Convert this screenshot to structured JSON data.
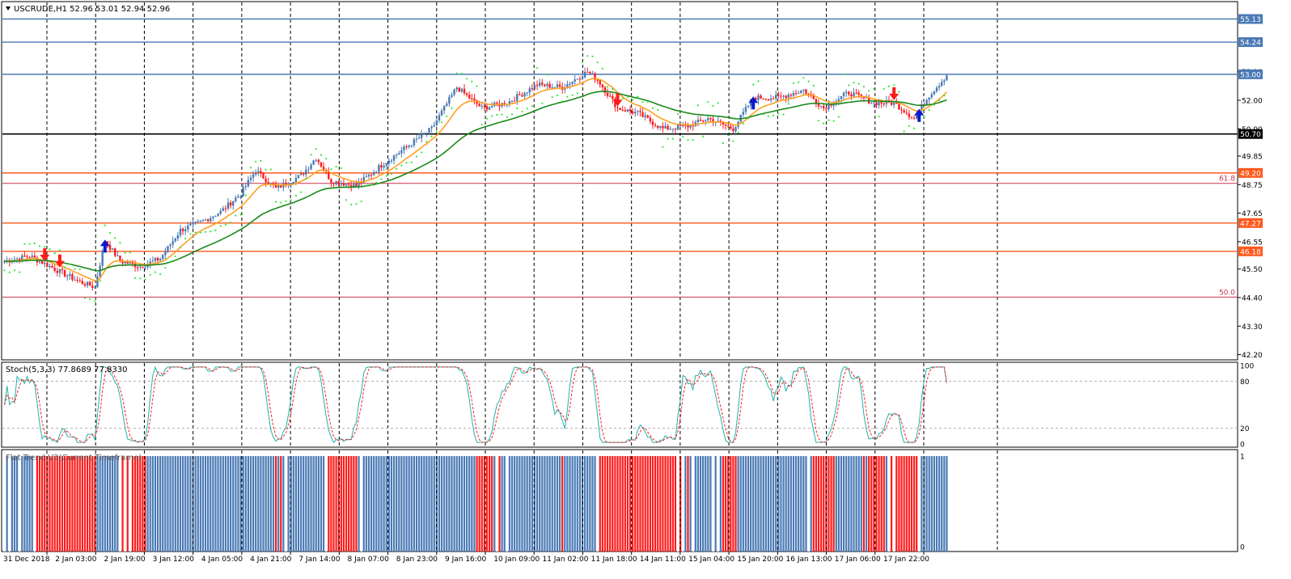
{
  "symbol_header": {
    "text": "USCRUDE,H1  52.96 53.01 52.94 52.96",
    "menu_icon": "triangle-down-icon"
  },
  "chart_data": [
    {
      "type": "candlestick",
      "panel": "price",
      "symbol": "USCRUDE",
      "timeframe": "H1",
      "ohlc_current": {
        "open": 52.96,
        "high": 53.01,
        "low": 52.94,
        "close": 52.96
      },
      "y_ticks": [
        "53.10",
        "52.00",
        "50.90",
        "49.85",
        "48.75",
        "47.65",
        "46.55",
        "45.50",
        "44.40",
        "43.30",
        "42.20"
      ],
      "y_tick_values": [
        53.1,
        52.0,
        50.9,
        49.85,
        48.75,
        47.65,
        46.55,
        45.5,
        44.4,
        43.3,
        42.2
      ],
      "ylim": [
        42.0,
        55.8
      ],
      "x_labels": [
        "31 Dec 2018",
        "2 Jan 03:00",
        "2 Jan 19:00",
        "3 Jan 12:00",
        "4 Jan 05:00",
        "4 Jan 21:00",
        "7 Jan 14:00",
        "8 Jan 07:00",
        "8 Jan 23:00",
        "9 Jan 16:00",
        "10 Jan 09:00",
        "11 Jan 02:00",
        "11 Jan 18:00",
        "14 Jan 11:00",
        "15 Jan 04:00",
        "15 Jan 20:00",
        "16 Jan 13:00",
        "17 Jan 06:00",
        "17 Jan 22:00"
      ],
      "horizontal_levels": [
        {
          "price": 55.13,
          "label": "55.13",
          "color": "#4a7ab5"
        },
        {
          "price": 54.24,
          "label": "54.24",
          "color": "#4a7ab5"
        },
        {
          "price": 53.0,
          "label": "53.00",
          "color": "#4a7ab5"
        },
        {
          "price": 50.7,
          "label": "50.70",
          "color": "#000000"
        },
        {
          "price": 49.2,
          "label": "49.20",
          "color": "#ff5a1e"
        },
        {
          "price": 47.27,
          "label": "47.27",
          "color": "#ff5a1e"
        },
        {
          "price": 46.18,
          "label": "46.18",
          "color": "#ff5a1e"
        }
      ],
      "fibonacci_levels": [
        {
          "price": 48.8,
          "label": "61.8",
          "color": "#c8324b"
        },
        {
          "price": 44.42,
          "label": "50.0",
          "color": "#c8324b"
        }
      ],
      "price_path": [
        {
          "i": 0,
          "p": 45.8
        },
        {
          "i": 10,
          "p": 46.0
        },
        {
          "i": 20,
          "p": 45.5
        },
        {
          "i": 30,
          "p": 45.0
        },
        {
          "i": 36,
          "p": 44.8
        },
        {
          "i": 40,
          "p": 46.6
        },
        {
          "i": 46,
          "p": 45.8
        },
        {
          "i": 54,
          "p": 45.6
        },
        {
          "i": 62,
          "p": 45.9
        },
        {
          "i": 70,
          "p": 47.0
        },
        {
          "i": 78,
          "p": 47.3
        },
        {
          "i": 86,
          "p": 47.7
        },
        {
          "i": 94,
          "p": 48.4
        },
        {
          "i": 100,
          "p": 49.3
        },
        {
          "i": 108,
          "p": 48.6
        },
        {
          "i": 118,
          "p": 49.1
        },
        {
          "i": 124,
          "p": 49.8
        },
        {
          "i": 130,
          "p": 48.9
        },
        {
          "i": 140,
          "p": 48.7
        },
        {
          "i": 150,
          "p": 49.5
        },
        {
          "i": 160,
          "p": 50.2
        },
        {
          "i": 170,
          "p": 50.9
        },
        {
          "i": 180,
          "p": 52.5
        },
        {
          "i": 190,
          "p": 51.7
        },
        {
          "i": 200,
          "p": 51.9
        },
        {
          "i": 212,
          "p": 52.6
        },
        {
          "i": 222,
          "p": 52.5
        },
        {
          "i": 232,
          "p": 53.1
        },
        {
          "i": 236,
          "p": 52.8
        },
        {
          "i": 244,
          "p": 51.7
        },
        {
          "i": 252,
          "p": 51.5
        },
        {
          "i": 262,
          "p": 50.9
        },
        {
          "i": 272,
          "p": 51.0
        },
        {
          "i": 280,
          "p": 51.3
        },
        {
          "i": 290,
          "p": 50.9
        },
        {
          "i": 298,
          "p": 52.1
        },
        {
          "i": 308,
          "p": 52.1
        },
        {
          "i": 318,
          "p": 52.4
        },
        {
          "i": 326,
          "p": 51.7
        },
        {
          "i": 336,
          "p": 52.3
        },
        {
          "i": 346,
          "p": 51.9
        },
        {
          "i": 354,
          "p": 51.9
        },
        {
          "i": 362,
          "p": 51.3
        },
        {
          "i": 368,
          "p": 52.2
        },
        {
          "i": 375,
          "p": 52.96
        }
      ],
      "candle_count": 376,
      "bull_color": "#4a7ab5",
      "bear_color": "#ff1a1a",
      "moving_averages": [
        {
          "label": "fast",
          "color": "#ffa020",
          "period": 14
        },
        {
          "label": "slow",
          "color": "#1a8a1a",
          "period": 50
        }
      ],
      "parabolic_sar_color": "#33e633",
      "signal_arrows": [
        {
          "i": 16,
          "dir": "down",
          "color": "#ff1a1a"
        },
        {
          "i": 22,
          "dir": "down",
          "color": "#ff1a1a"
        },
        {
          "i": 40,
          "dir": "up",
          "color": "#0a1acc"
        },
        {
          "i": 244,
          "dir": "down",
          "color": "#ff1a1a"
        },
        {
          "i": 298,
          "dir": "up",
          "color": "#0a1acc"
        },
        {
          "i": 354,
          "dir": "down",
          "color": "#ff1a1a"
        },
        {
          "i": 364,
          "dir": "up",
          "color": "#0a1acc"
        }
      ]
    },
    {
      "type": "line",
      "panel": "stochastic",
      "title": "Stoch(5,3,3) 77.8689 77.8330",
      "main_value": 77.8689,
      "signal_value": 77.833,
      "ylim": [
        0,
        100
      ],
      "y_ticks": [
        "100",
        "80",
        "20",
        "0"
      ],
      "y_tick_values": [
        100,
        80,
        20,
        0
      ],
      "levels": [
        80,
        20
      ],
      "main_color": "#20b2aa",
      "signal_color": "#ff2020"
    },
    {
      "type": "bar",
      "panel": "flat_trend",
      "title": "Flat Trend V3(Current Timeframe)",
      "ylim": [
        0,
        1
      ],
      "y_ticks": [
        "1",
        "0"
      ],
      "y_tick_values": [
        1,
        0
      ],
      "bull_color": "#4a7ab5",
      "bear_color": "#ff1a1a",
      "flat_color": "#ffffff"
    }
  ]
}
